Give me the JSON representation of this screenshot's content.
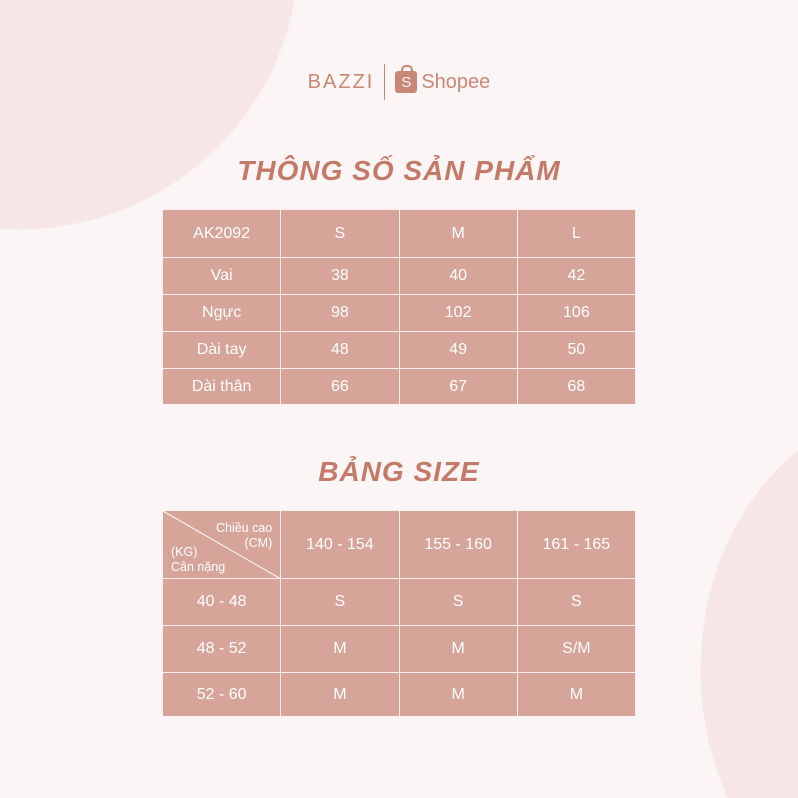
{
  "header": {
    "brand": "BAZZI",
    "shop": "Shopee",
    "shop_icon_letter": "S"
  },
  "specs": {
    "title": "THÔNG SỐ SẢN PHẨM",
    "header": [
      "AK2092",
      "S",
      "M",
      "L"
    ],
    "rows": [
      [
        "Vai",
        "38",
        "40",
        "42"
      ],
      [
        "Ngực",
        "98",
        "102",
        "106"
      ],
      [
        "Dài tay",
        "48",
        "49",
        "50"
      ],
      [
        "Dài thân",
        "66",
        "67",
        "68"
      ]
    ]
  },
  "size": {
    "title": "BẢNG SIZE",
    "corner_top": "Chiều cao",
    "corner_top_unit": "(CM)",
    "corner_bottom_unit": "(KG)",
    "corner_bottom": "Cân nặng",
    "header": [
      "140 - 154",
      "155 - 160",
      "161 - 165"
    ],
    "rows": [
      [
        "40 - 48",
        "S",
        "S",
        "S"
      ],
      [
        "48 - 52",
        "M",
        "M",
        "S/M"
      ],
      [
        "52 - 60",
        "M",
        "M",
        "M"
      ]
    ]
  },
  "colors": {
    "cell": "#d6a498",
    "accent": "#c47a68",
    "background": "#fcf5f5"
  }
}
